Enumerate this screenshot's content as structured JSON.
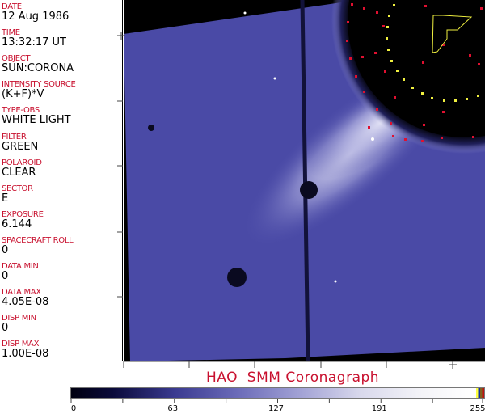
{
  "header_fields": [
    {
      "label": "DATE",
      "value": "12 Aug 1986"
    },
    {
      "label": "TIME",
      "value": "13:32:17 UT"
    },
    {
      "label": "OBJECT",
      "value": "SUN:CORONA"
    },
    {
      "label": "INTENSITY SOURCE",
      "value": "(K+F)*V"
    },
    {
      "label": "TYPE-OBS",
      "value": "WHITE LIGHT"
    },
    {
      "label": "FILTER",
      "value": "GREEN"
    },
    {
      "label": "POLAROID",
      "value": "CLEAR"
    },
    {
      "label": "SECTOR",
      "value": "E"
    },
    {
      "label": "EXPOSURE",
      "value": "6.144"
    },
    {
      "label": "SPACECRAFT ROLL",
      "value": "0"
    },
    {
      "label": "DATA MIN",
      "value": "0"
    },
    {
      "label": "DATA MAX",
      "value": "4.05E-08"
    },
    {
      "label": "DISP MIN",
      "value": "0"
    },
    {
      "label": "DISP MAX",
      "value": "1.00E-08"
    }
  ],
  "title": "HAO  SMM Coronagraph",
  "colorbar": {
    "min": 0,
    "max": 255,
    "tick_labels": [
      "0",
      "63",
      "127",
      "191",
      "255"
    ],
    "colormap": "black-blue-white",
    "colors": {
      "dark": "#000010",
      "mid": "#6a6ab8",
      "light": "#ffffff"
    }
  },
  "colors": {
    "label": "#c8102e",
    "value": "#000000"
  }
}
